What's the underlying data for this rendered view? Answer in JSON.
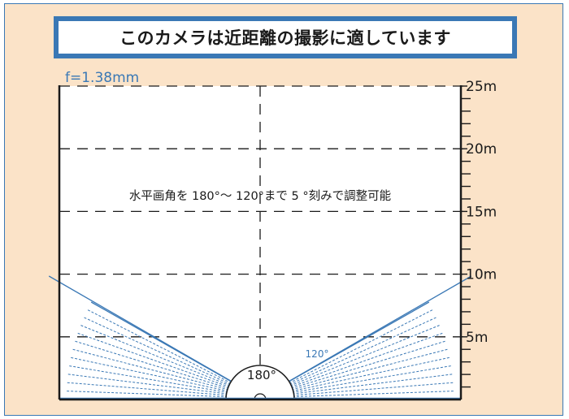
{
  "title": "このカメラは近距離の撮影に適しています",
  "focal_length": "f=1.38mm",
  "note": "水平画角を 180°～ 120°まで 5 °刻みで調整可能",
  "angle_max_label": "180°",
  "angle_min_label": "120°",
  "distance_labels": [
    "5m",
    "10m",
    "15m",
    "20m",
    "25m"
  ],
  "colors": {
    "background": "#fbe3c8",
    "accent": "#3a78b5",
    "ink": "#1a1a1a"
  },
  "chart_data": {
    "type": "diagram",
    "distance_unit": "m",
    "max_distance": 25,
    "gridline_distances": [
      5,
      10,
      15,
      20,
      25
    ],
    "minor_tick_step": 1,
    "fov_max_deg": 180,
    "fov_min_deg": 120,
    "fov_step_deg": 5
  }
}
